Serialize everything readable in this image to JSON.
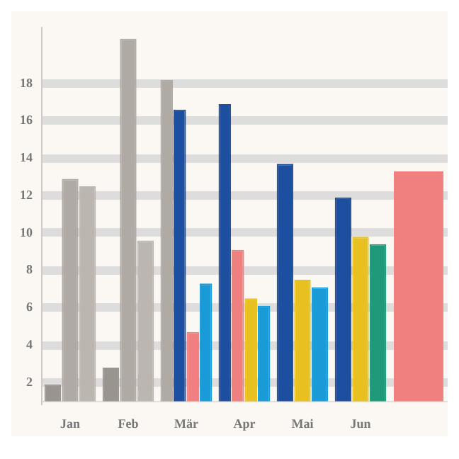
{
  "chart_data": {
    "type": "bar",
    "categories": [
      "Jan",
      "Feb",
      "Mär",
      "Apr",
      "Mai",
      "Jun",
      null
    ],
    "series": [
      {
        "color": "#9a948e",
        "values": [
          1.9,
          2.8,
          null,
          null,
          null,
          null,
          null
        ]
      },
      {
        "color": "#b0aaa4",
        "values": [
          12.9,
          20.4,
          18.2,
          null,
          null,
          null,
          null
        ]
      },
      {
        "color": "#bcb6b0",
        "values": [
          12.5,
          9.6,
          null,
          null,
          null,
          null,
          null
        ]
      },
      {
        "color": "#1c4fa0",
        "values": [
          null,
          null,
          16.6,
          16.9,
          13.7,
          11.9,
          null
        ]
      },
      {
        "color": "#f08080",
        "values": [
          null,
          null,
          4.7,
          9.1,
          null,
          null,
          13.3
        ]
      },
      {
        "color": "#e8c020",
        "values": [
          null,
          null,
          null,
          6.5,
          7.5,
          9.8,
          null
        ]
      },
      {
        "colors": [
          "#1a9ad6",
          "#1a9ad6",
          "#1a9ad6",
          "#1a9ad6",
          "#1a9ad6",
          "#1e9a78",
          "#1a9ad6"
        ],
        "values": [
          null,
          null,
          7.3,
          6.1,
          7.1,
          9.4,
          null
        ]
      }
    ],
    "ylim": [
      1,
      21
    ],
    "yticks": [
      2,
      4,
      6,
      8,
      10,
      12,
      14,
      16,
      18
    ],
    "grid": "y"
  }
}
